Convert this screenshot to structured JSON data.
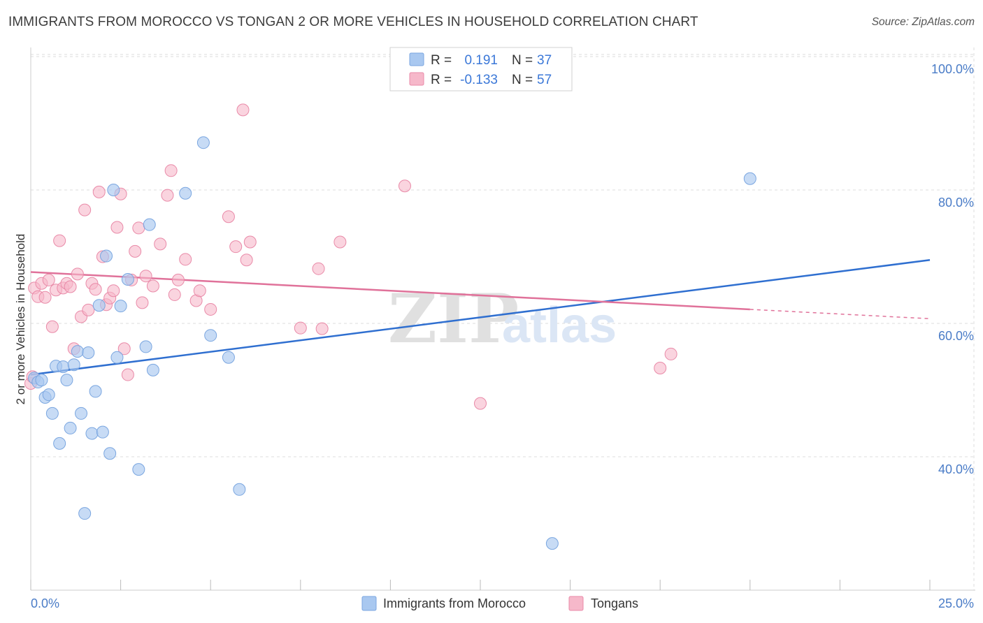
{
  "header": {
    "title": "IMMIGRANTS FROM MOROCCO VS TONGAN 2 OR MORE VEHICLES IN HOUSEHOLD CORRELATION CHART",
    "source": "Source: ZipAtlas.com"
  },
  "watermark": {
    "zip": "ZIP",
    "atlas": "atlas"
  },
  "legend_top": {
    "rows": [
      {
        "r_label": "R =",
        "r_value": "0.191",
        "n_label": "N =",
        "n_value": "37",
        "color": "#a9c8f0"
      },
      {
        "r_label": "R =",
        "r_value": "-0.133",
        "n_label": "N =",
        "n_value": "57",
        "color": "#f6b8ca"
      }
    ]
  },
  "legend_bottom": {
    "items": [
      {
        "label": "Immigrants from Morocco",
        "color": "#a9c8f0"
      },
      {
        "label": "Tongans",
        "color": "#f6b8ca"
      }
    ]
  },
  "colors": {
    "blue_fill": "#a9c8f0",
    "blue_stroke": "#7aa6e0",
    "blue_line": "#2f6fd0",
    "pink_fill": "#f6b8ca",
    "pink_stroke": "#e98aa8",
    "pink_line": "#e0729a",
    "grid": "#dddddd"
  },
  "chart_data": {
    "type": "scatter",
    "title": "IMMIGRANTS FROM MOROCCO VS TONGAN 2 OR MORE VEHICLES IN HOUSEHOLD CORRELATION CHART",
    "xlabel": "",
    "ylabel": "2 or more Vehicles in Household",
    "xlim": [
      0,
      25
    ],
    "ylim": [
      20,
      100
    ],
    "x_tick_labels": [
      "0.0%",
      "25.0%"
    ],
    "y_ticks": [
      40,
      60,
      80,
      100
    ],
    "y_tick_labels": [
      "40.0%",
      "60.0%",
      "80.0%",
      "100.0%"
    ],
    "grid": true,
    "legend_position": "top-center",
    "series": [
      {
        "name": "Immigrants from Morocco",
        "points": [
          [
            0.1,
            51.8
          ],
          [
            0.2,
            51.2
          ],
          [
            0.3,
            51.5
          ],
          [
            0.4,
            48.9
          ],
          [
            0.5,
            49.3
          ],
          [
            0.6,
            46.5
          ],
          [
            0.7,
            53.6
          ],
          [
            0.8,
            42.0
          ],
          [
            0.9,
            53.5
          ],
          [
            1.0,
            51.5
          ],
          [
            1.1,
            44.3
          ],
          [
            1.2,
            53.8
          ],
          [
            1.3,
            55.8
          ],
          [
            1.4,
            46.5
          ],
          [
            1.5,
            31.5
          ],
          [
            1.6,
            55.6
          ],
          [
            1.7,
            43.5
          ],
          [
            1.8,
            49.8
          ],
          [
            1.9,
            62.7
          ],
          [
            2.0,
            43.7
          ],
          [
            2.1,
            70.1
          ],
          [
            2.2,
            40.5
          ],
          [
            2.3,
            80.0
          ],
          [
            2.4,
            54.9
          ],
          [
            2.5,
            62.6
          ],
          [
            2.7,
            66.6
          ],
          [
            3.0,
            38.1
          ],
          [
            3.2,
            56.5
          ],
          [
            3.3,
            74.8
          ],
          [
            3.4,
            53.0
          ],
          [
            4.3,
            79.5
          ],
          [
            4.8,
            87.1
          ],
          [
            5.0,
            58.2
          ],
          [
            5.5,
            54.9
          ],
          [
            5.8,
            35.1
          ],
          [
            14.5,
            27.0
          ],
          [
            20.0,
            81.7
          ]
        ],
        "trend": {
          "x": [
            0,
            25
          ],
          "y": [
            52.3,
            69.5
          ]
        }
      },
      {
        "name": "Tongans",
        "points": [
          [
            0.0,
            51.0
          ],
          [
            0.1,
            65.3
          ],
          [
            0.2,
            64.0
          ],
          [
            0.3,
            66.0
          ],
          [
            0.4,
            63.9
          ],
          [
            0.5,
            66.5
          ],
          [
            0.6,
            59.5
          ],
          [
            0.7,
            65.0
          ],
          [
            0.8,
            72.4
          ],
          [
            0.9,
            65.3
          ],
          [
            1.0,
            66.0
          ],
          [
            1.1,
            65.5
          ],
          [
            1.2,
            56.2
          ],
          [
            1.3,
            67.4
          ],
          [
            1.4,
            61.0
          ],
          [
            1.5,
            77.0
          ],
          [
            1.6,
            62.0
          ],
          [
            1.7,
            66.0
          ],
          [
            1.8,
            65.1
          ],
          [
            1.9,
            79.7
          ],
          [
            2.0,
            70.0
          ],
          [
            2.1,
            62.8
          ],
          [
            2.2,
            63.8
          ],
          [
            2.3,
            64.9
          ],
          [
            2.4,
            74.4
          ],
          [
            2.5,
            79.4
          ],
          [
            2.6,
            56.2
          ],
          [
            2.7,
            52.3
          ],
          [
            2.8,
            66.5
          ],
          [
            2.9,
            70.8
          ],
          [
            3.0,
            74.3
          ],
          [
            3.1,
            63.1
          ],
          [
            3.2,
            67.1
          ],
          [
            3.4,
            65.6
          ],
          [
            3.6,
            71.9
          ],
          [
            3.8,
            79.2
          ],
          [
            3.9,
            82.9
          ],
          [
            4.0,
            64.3
          ],
          [
            4.1,
            66.5
          ],
          [
            4.3,
            69.6
          ],
          [
            4.6,
            63.4
          ],
          [
            4.7,
            64.9
          ],
          [
            5.0,
            62.1
          ],
          [
            5.5,
            76.0
          ],
          [
            5.7,
            71.5
          ],
          [
            5.9,
            92.0
          ],
          [
            6.0,
            69.5
          ],
          [
            6.1,
            72.2
          ],
          [
            7.5,
            59.3
          ],
          [
            8.0,
            68.2
          ],
          [
            8.1,
            59.2
          ],
          [
            8.6,
            72.2
          ],
          [
            10.4,
            80.6
          ],
          [
            12.5,
            48.0
          ],
          [
            17.5,
            53.3
          ],
          [
            17.8,
            55.4
          ],
          [
            0.05,
            52.0
          ]
        ],
        "trend": {
          "x": [
            0,
            20
          ],
          "y": [
            67.7,
            62.1
          ]
        },
        "trend_dashed": {
          "x": [
            20,
            25
          ],
          "y": [
            62.1,
            60.7
          ]
        }
      }
    ]
  }
}
